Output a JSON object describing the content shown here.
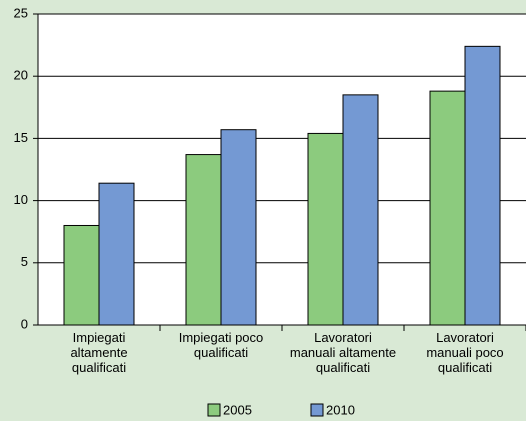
{
  "chart_data": {
    "type": "bar",
    "categories": [
      "Impiegati\naltamente\nqualificati",
      "Impiegati poco\nqualificati",
      "Lavoratori\nmanuali altamente\nqualificati",
      "Lavoratori\nmanuali poco\nqualificati"
    ],
    "series": [
      {
        "name": "2005",
        "color": "#8ccb7e",
        "values": [
          8.0,
          13.7,
          15.4,
          18.8
        ]
      },
      {
        "name": "2010",
        "color": "#7499d3",
        "values": [
          11.4,
          15.7,
          18.5,
          22.4
        ]
      }
    ],
    "ylim": [
      0,
      25
    ],
    "yticks": [
      0,
      5,
      10,
      15,
      20,
      25
    ],
    "grid": true
  }
}
